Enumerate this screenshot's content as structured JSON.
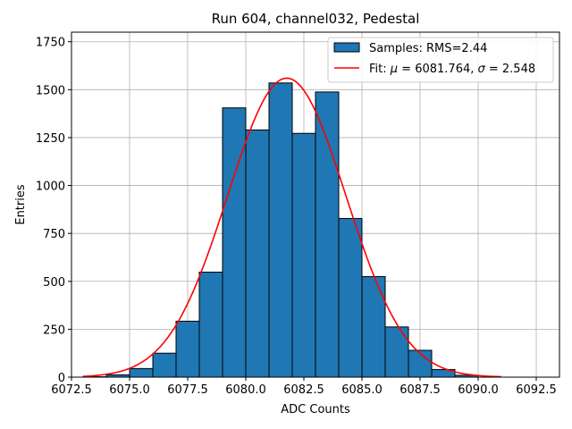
{
  "chart_data": {
    "type": "bar",
    "title": "Run 604, channel032, Pedestal",
    "xlabel": "ADC Counts",
    "ylabel": "Entries",
    "xlim": [
      6072.5,
      6093.5
    ],
    "ylim": [
      0,
      1800
    ],
    "xticks": [
      "6072.5",
      "6075.0",
      "6077.5",
      "6080.0",
      "6082.5",
      "6085.0",
      "6087.5",
      "6090.0",
      "6092.5"
    ],
    "xtick_values": [
      6072.5,
      6075.0,
      6077.5,
      6080.0,
      6082.5,
      6085.0,
      6087.5,
      6090.0,
      6092.5
    ],
    "yticks": [
      "0",
      "250",
      "500",
      "750",
      "1000",
      "1250",
      "1500",
      "1750"
    ],
    "ytick_values": [
      0,
      250,
      500,
      750,
      1000,
      1250,
      1500,
      1750
    ],
    "grid": true,
    "legend_position": "top-right",
    "histogram": {
      "name": "Samples: RMS=2.44",
      "color": "#1f77b4",
      "edge_color": "#000000",
      "bins": [
        {
          "left": 6073,
          "right": 6074,
          "value": 2
        },
        {
          "left": 6074,
          "right": 6075,
          "value": 12
        },
        {
          "left": 6075,
          "right": 6076,
          "value": 45
        },
        {
          "left": 6076,
          "right": 6077,
          "value": 125
        },
        {
          "left": 6077,
          "right": 6078,
          "value": 292
        },
        {
          "left": 6078,
          "right": 6079,
          "value": 548
        },
        {
          "left": 6079,
          "right": 6080,
          "value": 1405
        },
        {
          "left": 6080,
          "right": 6081,
          "value": 1290
        },
        {
          "left": 6081,
          "right": 6082,
          "value": 1535
        },
        {
          "left": 6082,
          "right": 6083,
          "value": 1272
        },
        {
          "left": 6083,
          "right": 6084,
          "value": 1488
        },
        {
          "left": 6084,
          "right": 6085,
          "value": 828
        },
        {
          "left": 6085,
          "right": 6086,
          "value": 525
        },
        {
          "left": 6086,
          "right": 6087,
          "value": 262
        },
        {
          "left": 6087,
          "right": 6088,
          "value": 140
        },
        {
          "left": 6088,
          "right": 6089,
          "value": 40
        },
        {
          "left": 6089,
          "right": 6090,
          "value": 10
        }
      ]
    },
    "fit": {
      "name_prefix": "Fit: ",
      "mu_symbol": "μ",
      "mu_text": " = 6081.764, ",
      "sigma_symbol": "σ",
      "sigma_text": " = 2.548",
      "color": "#ff0000",
      "mu": 6081.764,
      "sigma": 2.548,
      "amplitude": 1560,
      "x_range": [
        6073,
        6091
      ]
    }
  }
}
